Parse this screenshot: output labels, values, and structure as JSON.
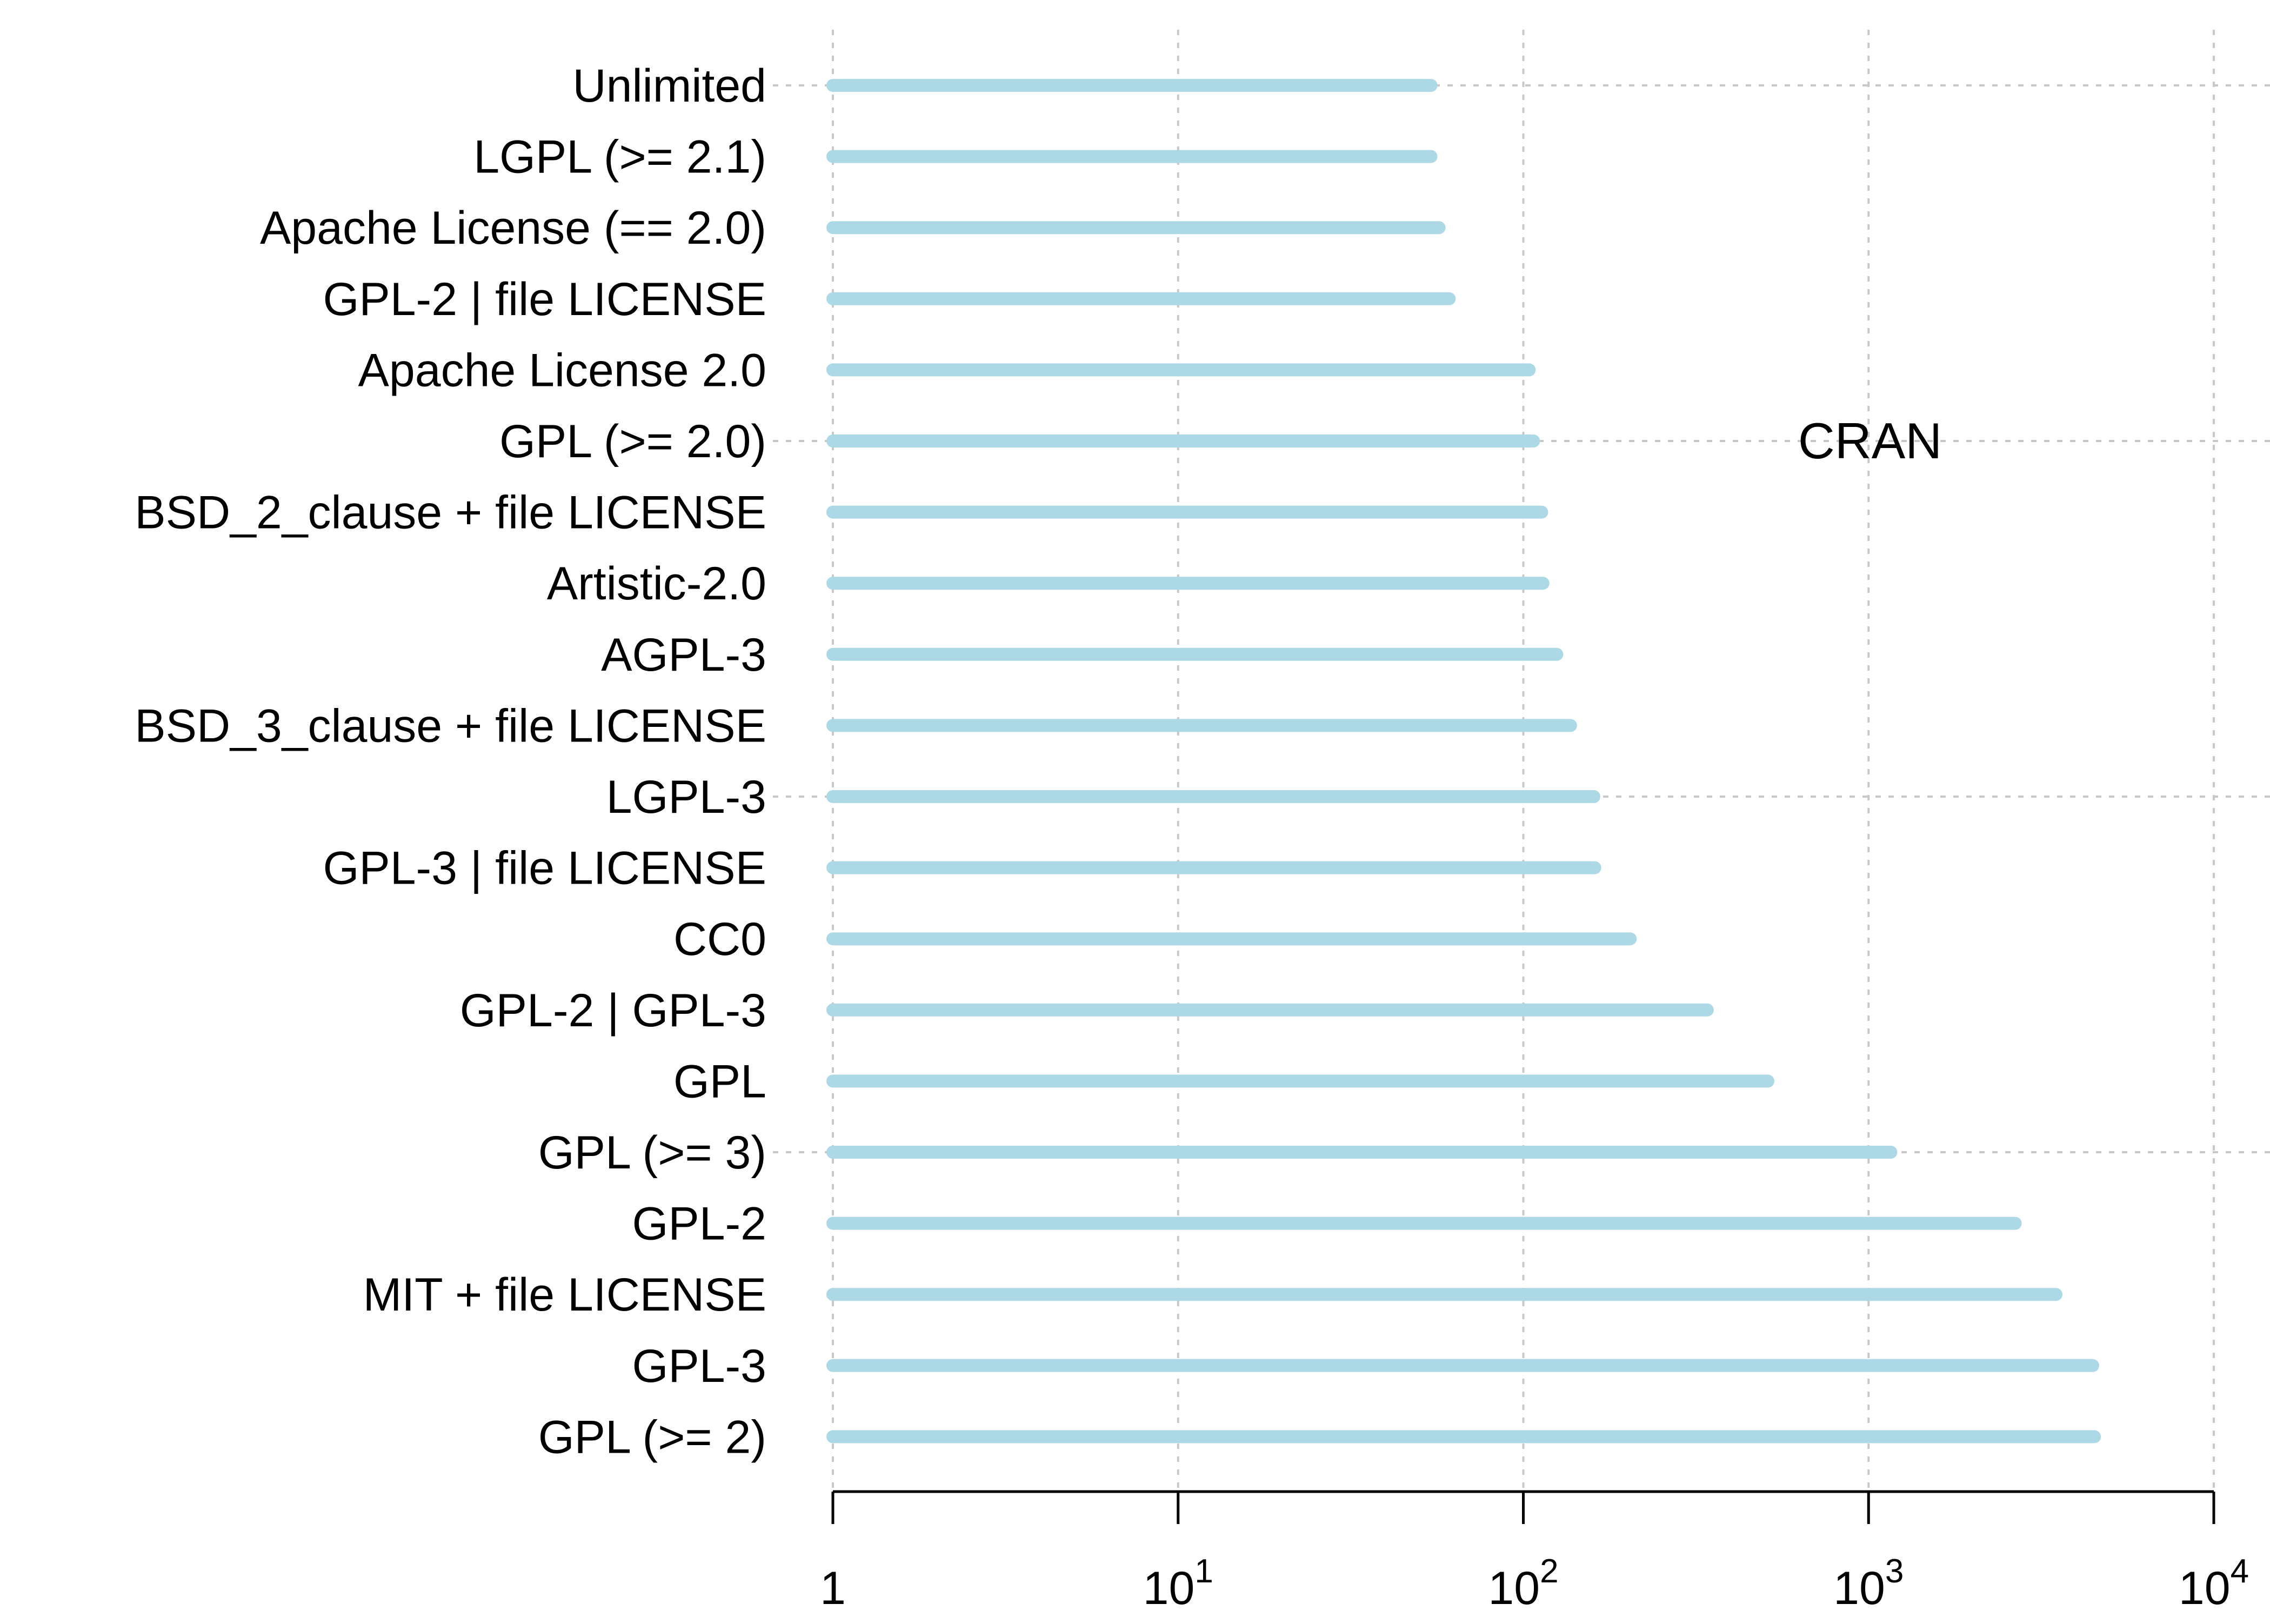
{
  "chart_data": {
    "type": "bar",
    "orientation": "horizontal",
    "bar_style": "lollipop-segment",
    "title": "",
    "xlabel": "",
    "ylabel": "",
    "x_scale": "log10",
    "xlim": [
      1,
      10000
    ],
    "x_ticks": [
      {
        "value": 1,
        "base": "1",
        "exp": ""
      },
      {
        "value": 10,
        "base": "10",
        "exp": "1"
      },
      {
        "value": 100,
        "base": "10",
        "exp": "2"
      },
      {
        "value": 1000,
        "base": "10",
        "exp": "3"
      },
      {
        "value": 10000,
        "base": "10",
        "exp": "4"
      }
    ],
    "grid": true,
    "annotation": "CRAN",
    "categories": [
      "Unlimited",
      "LGPL (>= 2.1)",
      "Apache License (== 2.0)",
      "GPL-2 | file LICENSE",
      "Apache License 2.0",
      "GPL (>= 2.0)",
      "BSD_2_clause + file LICENSE",
      "Artistic-2.0",
      "AGPL-3",
      "BSD_3_clause + file LICENSE",
      "LGPL-3",
      "GPL-3 | file LICENSE",
      "CC0",
      "GPL-2 | GPL-3",
      "GPL",
      "GPL (>= 3)",
      "GPL-2",
      "MIT + file LICENSE",
      "GPL-3",
      "GPL (>= 2)"
    ],
    "values": [
      54,
      54,
      57,
      61,
      104,
      107,
      113,
      114,
      125,
      137,
      160,
      161,
      204,
      341,
      511,
      1160,
      2660,
      3490,
      4460,
      4510
    ],
    "colors": {
      "bar": "#add8e6",
      "grid": "#c8c8c8",
      "axis": "#000000",
      "text": "#000000"
    }
  }
}
